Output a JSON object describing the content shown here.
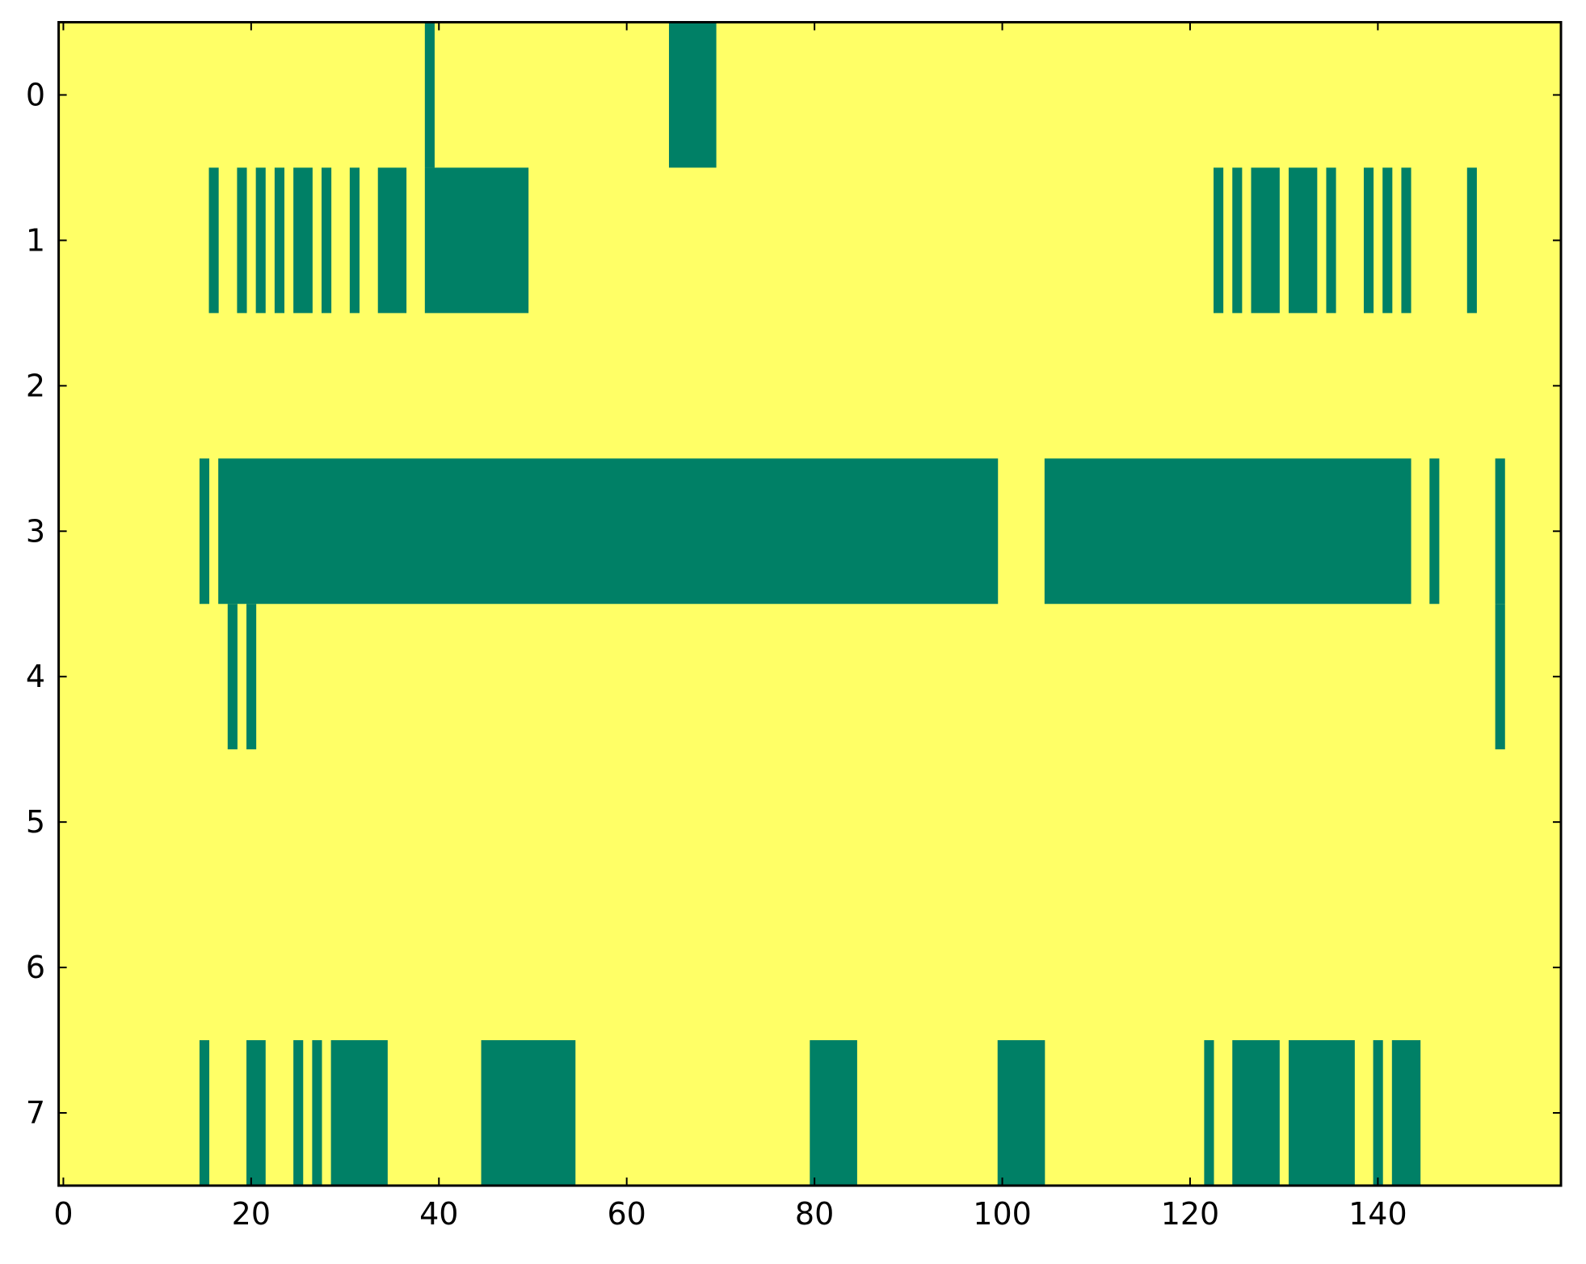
{
  "chart_data": {
    "type": "heatmap",
    "title": "",
    "xlabel": "",
    "ylabel": "",
    "n_rows": 8,
    "n_cols": 160,
    "xlim": [
      -0.5,
      159.5
    ],
    "ylim": [
      7.5,
      -0.5
    ],
    "grid": false,
    "legend": "none",
    "colors": {
      "zero": "#ffff66",
      "one": "#008066",
      "axis": "#000000"
    },
    "x_ticks": [
      0,
      20,
      40,
      60,
      80,
      100,
      120,
      140
    ],
    "x_tick_labels": [
      "0",
      "20",
      "40",
      "60",
      "80",
      "100",
      "120",
      "140"
    ],
    "y_ticks": [
      0,
      1,
      2,
      3,
      4,
      5,
      6,
      7
    ],
    "y_tick_labels": [
      "0",
      "1",
      "2",
      "3",
      "4",
      "5",
      "6",
      "7"
    ],
    "value_one_runs_note_format": "per row, inclusive [start_col, end_col] runs with value 1; all other cells are 0",
    "rows": [
      {
        "row": 0,
        "runs": [
          [
            39,
            39
          ],
          [
            65,
            69
          ]
        ]
      },
      {
        "row": 1,
        "runs": [
          [
            16,
            16
          ],
          [
            19,
            19
          ],
          [
            21,
            21
          ],
          [
            23,
            23
          ],
          [
            25,
            26
          ],
          [
            28,
            28
          ],
          [
            31,
            31
          ],
          [
            34,
            36
          ],
          [
            39,
            49
          ],
          [
            123,
            123
          ],
          [
            125,
            125
          ],
          [
            127,
            129
          ],
          [
            131,
            133
          ],
          [
            135,
            135
          ],
          [
            139,
            139
          ],
          [
            141,
            141
          ],
          [
            143,
            143
          ],
          [
            150,
            150
          ]
        ]
      },
      {
        "row": 2,
        "runs": []
      },
      {
        "row": 3,
        "runs": [
          [
            15,
            15
          ],
          [
            17,
            99
          ],
          [
            105,
            143
          ],
          [
            146,
            146
          ],
          [
            153,
            153
          ]
        ]
      },
      {
        "row": 4,
        "runs": [
          [
            18,
            18
          ],
          [
            20,
            20
          ],
          [
            153,
            153
          ]
        ]
      },
      {
        "row": 5,
        "runs": []
      },
      {
        "row": 6,
        "runs": []
      },
      {
        "row": 7,
        "runs": [
          [
            15,
            15
          ],
          [
            20,
            21
          ],
          [
            25,
            25
          ],
          [
            27,
            27
          ],
          [
            29,
            34
          ],
          [
            45,
            54
          ],
          [
            80,
            84
          ],
          [
            100,
            104
          ],
          [
            122,
            122
          ],
          [
            125,
            129
          ],
          [
            131,
            137
          ],
          [
            140,
            140
          ],
          [
            142,
            144
          ]
        ]
      }
    ]
  }
}
